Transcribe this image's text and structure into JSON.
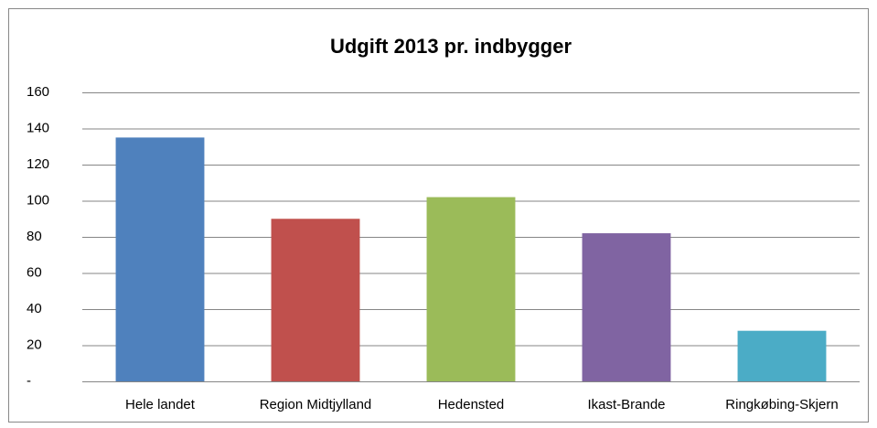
{
  "chart_data": {
    "type": "bar",
    "title": "Udgift 2013 pr. indbygger",
    "categories": [
      "Hele landet",
      "Region Midtjylland",
      "Hedensted",
      "Ikast-Brande",
      "Ringkøbing-Skjern"
    ],
    "values": [
      135,
      90,
      102,
      82,
      28
    ],
    "colors": [
      "#4f81bd",
      "#c0504d",
      "#9bbb59",
      "#8064a2",
      "#4bacc6"
    ],
    "ylim": [
      0,
      160
    ],
    "yticks": [
      {
        "value": 0,
        "label": "-"
      },
      20,
      40,
      60,
      80,
      100,
      120,
      140,
      160
    ],
    "grid": true
  }
}
